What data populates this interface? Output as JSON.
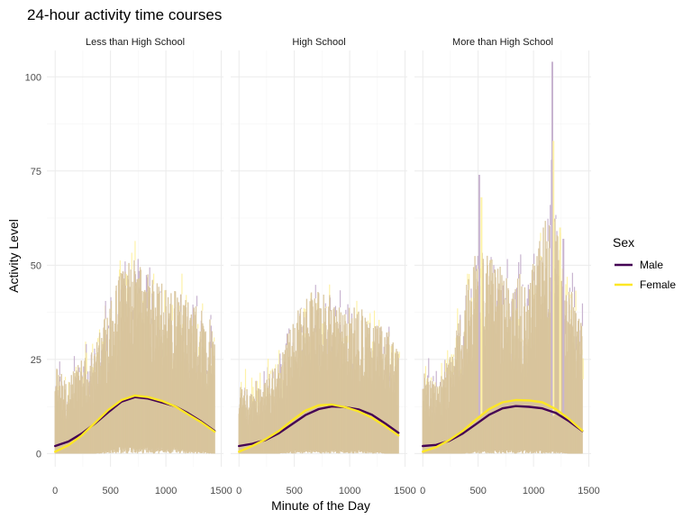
{
  "chart_data": {
    "type": "area",
    "title": "24-hour activity time courses",
    "xlabel": "Minute of the Day",
    "ylabel": "Activity Level",
    "xlim": [
      0,
      1440
    ],
    "ylim": [
      0,
      105
    ],
    "x_ticks": [
      0,
      500,
      1000,
      1500
    ],
    "x_tick_labels": [
      "0",
      "500",
      "1000",
      "1500"
    ],
    "y_ticks": [
      0,
      25,
      50,
      75,
      100
    ],
    "y_tick_labels": [
      "0",
      "25",
      "50",
      "75",
      "100"
    ],
    "grid": true,
    "legend": {
      "title": "Sex",
      "position": "right",
      "entries": [
        {
          "label": "Male",
          "color": "#440154"
        },
        {
          "label": "Female",
          "color": "#FDE725"
        }
      ]
    },
    "colors": {
      "male_band": "#C8B4D0",
      "female_band": "#FEF2A8",
      "overlap_band": "#D8C49C"
    },
    "panels": [
      {
        "label": "Less than High School",
        "x": [
          0,
          120,
          240,
          360,
          480,
          600,
          720,
          840,
          960,
          1080,
          1200,
          1320,
          1440
        ],
        "band": {
          "upper": [
            18,
            15,
            20,
            22,
            30,
            38,
            40,
            37,
            35,
            34,
            32,
            30,
            27
          ],
          "lower": [
            0,
            0,
            0,
            0,
            1,
            2,
            2,
            2,
            2,
            2,
            1,
            1,
            0
          ]
        },
        "series": [
          {
            "name": "Male",
            "values": [
              2.0,
              3.2,
              5.3,
              8.0,
              11.0,
              13.8,
              15.0,
              14.6,
              13.6,
              12.6,
              10.7,
              8.5,
              6.0
            ]
          },
          {
            "name": "Female",
            "values": [
              0.5,
              2.2,
              4.8,
              8.2,
              11.6,
              14.2,
              15.4,
              15.0,
              14.0,
              12.6,
              10.4,
              8.3,
              5.8
            ]
          }
        ]
      },
      {
        "label": "High School",
        "x": [
          0,
          120,
          240,
          360,
          480,
          600,
          720,
          840,
          960,
          1080,
          1200,
          1320,
          1440
        ],
        "band": {
          "upper": [
            16,
            12,
            15,
            20,
            27,
            32,
            35,
            33,
            31,
            30,
            28,
            26,
            22
          ],
          "lower": [
            0,
            0,
            0,
            0,
            1,
            1,
            1,
            1,
            1,
            1,
            1,
            0,
            0
          ]
        },
        "series": [
          {
            "name": "Male",
            "values": [
              2.0,
              2.6,
              3.6,
              5.4,
              7.8,
              10.2,
              11.8,
              12.5,
              12.3,
              11.7,
              10.3,
              8.0,
              5.5
            ]
          },
          {
            "name": "Female",
            "values": [
              0.5,
              2.0,
              3.8,
              6.0,
              8.8,
              11.4,
              12.8,
              13.0,
              12.3,
              11.2,
              9.5,
              7.3,
              4.8
            ]
          }
        ]
      },
      {
        "label": "More than High School",
        "x": [
          0,
          120,
          240,
          360,
          480,
          600,
          720,
          840,
          960,
          1080,
          1200,
          1320,
          1440
        ],
        "band": {
          "upper": [
            17,
            14,
            20,
            30,
            45,
            40,
            38,
            37,
            36,
            48,
            48,
            35,
            26
          ],
          "lower": [
            0,
            0,
            0,
            0,
            1,
            1,
            1,
            1,
            1,
            1,
            1,
            0,
            0
          ]
        },
        "spikes": [
          {
            "x": 510,
            "value": 74
          },
          {
            "x": 530,
            "value": 68
          },
          {
            "x": 1170,
            "value": 104
          },
          {
            "x": 1180,
            "value": 83
          },
          {
            "x": 1165,
            "value": 78
          },
          {
            "x": 1240,
            "value": 60
          },
          {
            "x": 1270,
            "value": 57
          }
        ],
        "series": [
          {
            "name": "Male",
            "values": [
              2.0,
              2.3,
              3.4,
              5.3,
              7.8,
              10.3,
              12.0,
              12.6,
              12.4,
              12.0,
              10.8,
              8.6,
              6.0
            ]
          },
          {
            "name": "Female",
            "values": [
              0.5,
              1.7,
              3.6,
              6.0,
              9.0,
              11.8,
              13.6,
              14.2,
              14.1,
              13.6,
              11.8,
              9.2,
              6.1
            ]
          }
        ]
      }
    ]
  }
}
